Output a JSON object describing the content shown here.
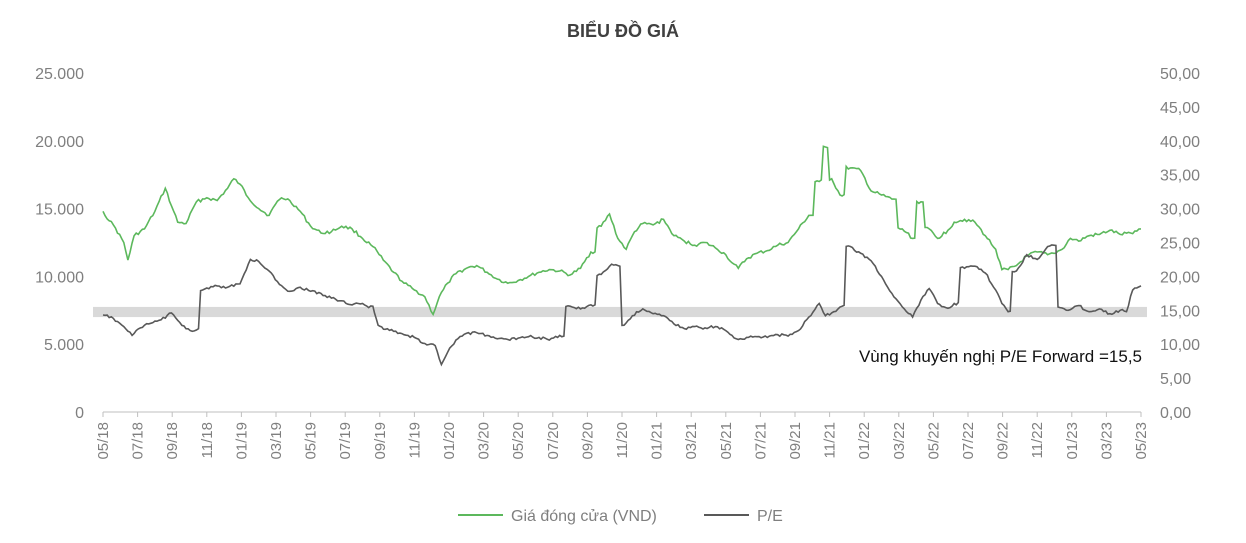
{
  "chart_data": {
    "type": "line",
    "title": "BIỂU ĐỒ GIÁ",
    "x_tick_labels": [
      "05/18",
      "07/18",
      "09/18",
      "11/18",
      "01/19",
      "03/19",
      "05/19",
      "07/19",
      "09/19",
      "11/19",
      "01/20",
      "03/20",
      "05/20",
      "07/20",
      "09/20",
      "11/20",
      "01/21",
      "03/21",
      "05/21",
      "07/21",
      "09/21",
      "11/21",
      "01/22",
      "03/22",
      "05/22",
      "07/22",
      "09/22",
      "11/22",
      "01/23",
      "03/23",
      "05/23"
    ],
    "y_left": {
      "range": [
        0,
        25000
      ],
      "ticks": [
        0,
        5000,
        10000,
        15000,
        20000,
        25000
      ],
      "tick_labels": [
        "0",
        "5.000",
        "10.000",
        "15.000",
        "20.000",
        "25.000"
      ]
    },
    "y_right": {
      "range": [
        0,
        50
      ],
      "ticks": [
        0,
        5,
        10,
        15,
        20,
        25,
        30,
        35,
        40,
        45,
        50
      ],
      "tick_labels": [
        "0,00",
        "5,00",
        "10,00",
        "15,00",
        "20,00",
        "25,00",
        "30,00",
        "35,00",
        "40,00",
        "45,00",
        "50,00"
      ]
    },
    "band": {
      "axis": "right",
      "range": [
        14,
        15.5
      ],
      "color": "#d9d9d9",
      "label": "Vùng khuyến nghị P/E Forward =15,5"
    },
    "series": [
      {
        "name": "Giá đóng cửa (VND)",
        "axis": "left",
        "color": "#5cb85c",
        "keyframes": [
          [
            0,
            14800
          ],
          [
            0.3,
            14100
          ],
          [
            0.5,
            13800
          ],
          [
            1,
            12500
          ],
          [
            1.2,
            11200
          ],
          [
            1.5,
            13000
          ],
          [
            2,
            13500
          ],
          [
            2.5,
            14800
          ],
          [
            3,
            16500
          ],
          [
            3.3,
            15200
          ],
          [
            3.6,
            14000
          ],
          [
            4,
            13900
          ],
          [
            4.5,
            15500
          ],
          [
            5,
            15800
          ],
          [
            5.5,
            15600
          ],
          [
            6,
            16500
          ],
          [
            6.3,
            17200
          ],
          [
            6.6,
            16800
          ],
          [
            7,
            15800
          ],
          [
            7.5,
            15000
          ],
          [
            8,
            14500
          ],
          [
            8.3,
            15300
          ],
          [
            8.6,
            15800
          ],
          [
            9,
            15600
          ],
          [
            9.5,
            14800
          ],
          [
            10,
            13700
          ],
          [
            10.5,
            13200
          ],
          [
            11,
            13300
          ],
          [
            11.5,
            13700
          ],
          [
            12,
            13500
          ],
          [
            12.5,
            12800
          ],
          [
            13,
            12200
          ],
          [
            13.5,
            11200
          ],
          [
            14,
            10300
          ],
          [
            14.5,
            9500
          ],
          [
            15,
            9000
          ],
          [
            15.5,
            8500
          ],
          [
            15.9,
            7200
          ],
          [
            16.2,
            8500
          ],
          [
            16.6,
            9500
          ],
          [
            17,
            10200
          ],
          [
            17.5,
            10600
          ],
          [
            18,
            10800
          ],
          [
            18.5,
            10300
          ],
          [
            19,
            9800
          ],
          [
            19.5,
            9500
          ],
          [
            20,
            9700
          ],
          [
            20.5,
            10000
          ],
          [
            21,
            10300
          ],
          [
            21.5,
            10500
          ],
          [
            22,
            10400
          ],
          [
            22.5,
            10100
          ],
          [
            23,
            10600
          ],
          [
            23.5,
            11800
          ],
          [
            24,
            13700
          ],
          [
            24.4,
            14600
          ],
          [
            24.8,
            12800
          ],
          [
            25.2,
            12000
          ],
          [
            25.6,
            13300
          ],
          [
            26,
            13900
          ],
          [
            26.5,
            13800
          ],
          [
            27,
            14200
          ],
          [
            27.5,
            13000
          ],
          [
            28,
            12600
          ],
          [
            28.5,
            12300
          ],
          [
            29,
            12500
          ],
          [
            29.5,
            12100
          ],
          [
            30,
            11600
          ],
          [
            30.3,
            11000
          ],
          [
            30.6,
            10600
          ],
          [
            31,
            11300
          ],
          [
            31.5,
            11700
          ],
          [
            32,
            11900
          ],
          [
            32.5,
            12300
          ],
          [
            33,
            12500
          ],
          [
            33.5,
            13500
          ],
          [
            34,
            14500
          ],
          [
            34.5,
            17000
          ],
          [
            34.9,
            19500
          ],
          [
            35.1,
            17200
          ],
          [
            35.5,
            16000
          ],
          [
            36,
            18000
          ],
          [
            36.5,
            17800
          ],
          [
            37,
            16300
          ],
          [
            37.5,
            16000
          ],
          [
            38,
            15700
          ],
          [
            38.5,
            13500
          ],
          [
            39,
            12800
          ],
          [
            39.4,
            15500
          ],
          [
            39.8,
            13500
          ],
          [
            40.2,
            12800
          ],
          [
            40.7,
            13400
          ],
          [
            41,
            14000
          ],
          [
            41.5,
            14200
          ],
          [
            42,
            14000
          ],
          [
            42.5,
            13000
          ],
          [
            43,
            12000
          ],
          [
            43.3,
            10500
          ],
          [
            43.6,
            10500
          ],
          [
            44,
            10800
          ],
          [
            44.5,
            11500
          ],
          [
            45,
            11800
          ],
          [
            45.5,
            11600
          ],
          [
            45.8,
            11700
          ],
          [
            46.2,
            12000
          ],
          [
            46.6,
            12800
          ],
          [
            47,
            12600
          ],
          [
            47.5,
            13000
          ],
          [
            48,
            13100
          ],
          [
            48.5,
            13400
          ],
          [
            49,
            13100
          ],
          [
            49.5,
            13200
          ],
          [
            50,
            13500
          ]
        ]
      },
      {
        "name": "P/E",
        "axis": "right",
        "color": "#595959",
        "keyframes": [
          [
            0,
            14.3
          ],
          [
            0.5,
            13.8
          ],
          [
            1,
            12.6
          ],
          [
            1.4,
            11.3
          ],
          [
            1.8,
            12.4
          ],
          [
            2.2,
            13.0
          ],
          [
            2.8,
            13.6
          ],
          [
            3.3,
            14.6
          ],
          [
            3.7,
            13.2
          ],
          [
            4.2,
            12.0
          ],
          [
            4.5,
            12.1
          ],
          [
            4.8,
            18.0
          ],
          [
            5.5,
            18.6
          ],
          [
            6,
            18.4
          ],
          [
            6.6,
            18.9
          ],
          [
            7.1,
            22.5
          ],
          [
            7.5,
            22.2
          ],
          [
            8,
            20.8
          ],
          [
            8.5,
            18.8
          ],
          [
            9,
            17.8
          ],
          [
            9.5,
            18.4
          ],
          [
            10,
            17.8
          ],
          [
            10.5,
            17.5
          ],
          [
            11,
            16.8
          ],
          [
            11.5,
            16.4
          ],
          [
            12,
            15.8
          ],
          [
            12.5,
            16.0
          ],
          [
            12.8,
            15.4
          ],
          [
            13,
            15.6
          ],
          [
            13.25,
            12.8
          ],
          [
            13.6,
            12.2
          ],
          [
            14,
            11.9
          ],
          [
            14.5,
            11.4
          ],
          [
            15,
            11.0
          ],
          [
            15.5,
            10.1
          ],
          [
            16,
            9.8
          ],
          [
            16.3,
            7.0
          ],
          [
            16.6,
            8.8
          ],
          [
            17,
            10.6
          ],
          [
            17.5,
            11.6
          ],
          [
            18,
            11.7
          ],
          [
            18.5,
            11.3
          ],
          [
            19,
            10.8
          ],
          [
            19.5,
            10.7
          ],
          [
            20,
            10.9
          ],
          [
            20.5,
            11.1
          ],
          [
            21,
            11.0
          ],
          [
            21.5,
            10.6
          ],
          [
            22,
            11.3
          ],
          [
            22.5,
            15.6
          ],
          [
            23,
            15.2
          ],
          [
            23.5,
            15.8
          ],
          [
            24,
            20.3
          ],
          [
            24.5,
            21.8
          ],
          [
            24.9,
            21.5
          ],
          [
            25.1,
            12.8
          ],
          [
            25.5,
            14.2
          ],
          [
            26,
            15.2
          ],
          [
            26.5,
            14.5
          ],
          [
            27,
            14.2
          ],
          [
            27.5,
            13.0
          ],
          [
            28,
            12.3
          ],
          [
            28.5,
            12.6
          ],
          [
            29,
            12.4
          ],
          [
            29.5,
            12.6
          ],
          [
            30,
            12.0
          ],
          [
            30.3,
            11.3
          ],
          [
            30.6,
            10.7
          ],
          [
            31,
            11.0
          ],
          [
            31.5,
            11.1
          ],
          [
            32,
            11.0
          ],
          [
            32.5,
            11.4
          ],
          [
            33,
            11.2
          ],
          [
            33.5,
            12.0
          ],
          [
            34,
            14.0
          ],
          [
            34.5,
            16.0
          ],
          [
            34.8,
            14.2
          ],
          [
            35.2,
            14.8
          ],
          [
            35.6,
            15.6
          ],
          [
            35.9,
            24.5
          ],
          [
            36.5,
            23.4
          ],
          [
            37,
            22.3
          ],
          [
            37.5,
            20.0
          ],
          [
            38,
            17.5
          ],
          [
            38.5,
            15.5
          ],
          [
            39,
            14.0
          ],
          [
            39.4,
            16.5
          ],
          [
            39.8,
            18.2
          ],
          [
            40.2,
            16.0
          ],
          [
            40.7,
            15.3
          ],
          [
            41,
            16.0
          ],
          [
            41.5,
            21.2
          ],
          [
            42,
            21.5
          ],
          [
            42.5,
            20.5
          ],
          [
            43,
            18.0
          ],
          [
            43.3,
            16.0
          ],
          [
            43.6,
            14.8
          ],
          [
            44,
            20.8
          ],
          [
            44.5,
            23.2
          ],
          [
            45,
            22.5
          ],
          [
            45.5,
            24.4
          ],
          [
            45.8,
            24.6
          ],
          [
            46.1,
            15.4
          ],
          [
            46.5,
            15.0
          ],
          [
            47,
            15.7
          ],
          [
            47.5,
            14.8
          ],
          [
            48,
            15.2
          ],
          [
            48.5,
            14.5
          ],
          [
            49,
            15.0
          ],
          [
            49.3,
            14.8
          ],
          [
            49.6,
            18.0
          ],
          [
            50,
            18.6
          ]
        ]
      }
    ],
    "legend": {
      "position": "bottom",
      "entries": [
        "Giá đóng cửa (VND)",
        "P/E"
      ]
    }
  }
}
